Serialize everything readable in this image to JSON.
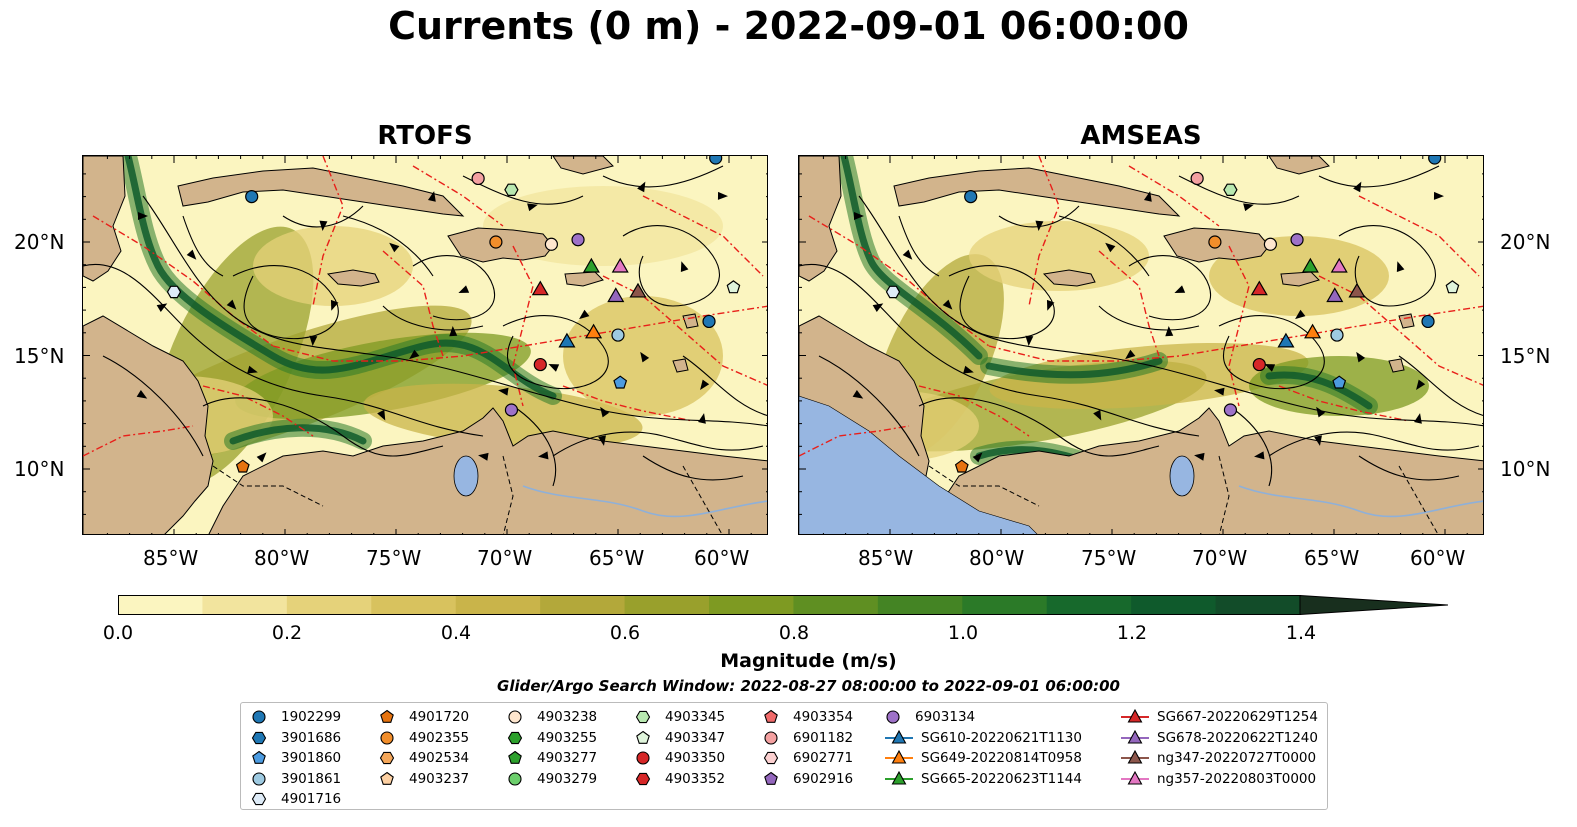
{
  "title": "Currents (0 m) - 2022-09-01 06:00:00",
  "panels": [
    {
      "title": "RTOFS"
    },
    {
      "title": "AMSEAS"
    }
  ],
  "y_ticks": [
    "20°N",
    "15°N",
    "10°N"
  ],
  "x_ticks": [
    "85°W",
    "80°W",
    "75°W",
    "70°W",
    "65°W",
    "60°W"
  ],
  "colorbar": {
    "label": "Magnitude (m/s)",
    "ticks": [
      "0.0",
      "0.2",
      "0.4",
      "0.6",
      "0.8",
      "1.0",
      "1.2",
      "1.4"
    ],
    "colors": [
      "#fbf5c0",
      "#f2e49e",
      "#e5d27a",
      "#d8c25e",
      "#c9b44a",
      "#b3a83a",
      "#99a02c",
      "#7e9a22",
      "#5f8f22",
      "#448424",
      "#2b7a28",
      "#17692c",
      "#0f5a2c",
      "#124c29",
      "#163d24",
      "#182f1e"
    ]
  },
  "search_window": "Glider/Argo Search Window: 2022-08-27 08:00:00 to 2022-09-01 06:00:00",
  "legend": [
    [
      {
        "label": "1902299",
        "marker": "circle",
        "color": "#1f77b4"
      },
      {
        "label": "3901686",
        "marker": "hexagon",
        "color": "#1f77b4"
      },
      {
        "label": "3901860",
        "marker": "pentagon",
        "color": "#4c9be0"
      },
      {
        "label": "3901861",
        "marker": "circle",
        "color": "#9ecae1"
      },
      {
        "label": "4901716",
        "marker": "hexagon",
        "color": "#deebf7"
      }
    ],
    [
      {
        "label": "4901720",
        "marker": "pentagon",
        "color": "#e6730f"
      },
      {
        "label": "4902355",
        "marker": "circle",
        "color": "#f28e2b"
      },
      {
        "label": "4902534",
        "marker": "hexagon",
        "color": "#f5a75a"
      },
      {
        "label": "4903237",
        "marker": "pentagon",
        "color": "#fdd0a2"
      }
    ],
    [
      {
        "label": "4903238",
        "marker": "circle",
        "color": "#fee6ce"
      },
      {
        "label": "4903255",
        "marker": "hexagon",
        "color": "#2ca02c"
      },
      {
        "label": "4903277",
        "marker": "pentagon",
        "color": "#2ca02c"
      },
      {
        "label": "4903279",
        "marker": "circle",
        "color": "#6ccf6c"
      }
    ],
    [
      {
        "label": "4903345",
        "marker": "hexagon",
        "color": "#b8e8b0"
      },
      {
        "label": "4903347",
        "marker": "pentagon",
        "color": "#e0f5dc"
      },
      {
        "label": "4903350",
        "marker": "circle",
        "color": "#d62728"
      },
      {
        "label": "4903352",
        "marker": "hexagon",
        "color": "#d62728"
      }
    ],
    [
      {
        "label": "4903354",
        "marker": "pentagon",
        "color": "#f06a6a"
      },
      {
        "label": "6901182",
        "marker": "circle",
        "color": "#f4a1a1"
      },
      {
        "label": "6902771",
        "marker": "hexagon",
        "color": "#fbd0d0"
      },
      {
        "label": "6902916",
        "marker": "pentagon",
        "color": "#9467bd"
      }
    ],
    [
      {
        "label": "6903134",
        "marker": "circle",
        "color": "#9e72c8"
      },
      {
        "label": "SG610-20220621T1130",
        "marker": "line-triangle",
        "color": "#1f77b4"
      },
      {
        "label": "SG649-20220814T0958",
        "marker": "line-triangle",
        "color": "#ff7f0e"
      },
      {
        "label": "SG665-20220623T1144",
        "marker": "line-triangle",
        "color": "#2ca02c"
      }
    ],
    [
      {
        "label": "SG667-20220629T1254",
        "marker": "line-triangle",
        "color": "#d62728"
      },
      {
        "label": "SG678-20220622T1240",
        "marker": "line-triangle",
        "color": "#9467bd"
      },
      {
        "label": "ng347-20220727T0000",
        "marker": "line-triangle",
        "color": "#8c564b"
      },
      {
        "label": "ng357-20220803T0000",
        "marker": "line-triangle",
        "color": "#e377c2"
      }
    ]
  ],
  "colors": {
    "land": "#d2b48c",
    "water_low": "#fbf5c0",
    "eez_lines": "#e8201a",
    "pacific": "#97b6e1"
  }
}
